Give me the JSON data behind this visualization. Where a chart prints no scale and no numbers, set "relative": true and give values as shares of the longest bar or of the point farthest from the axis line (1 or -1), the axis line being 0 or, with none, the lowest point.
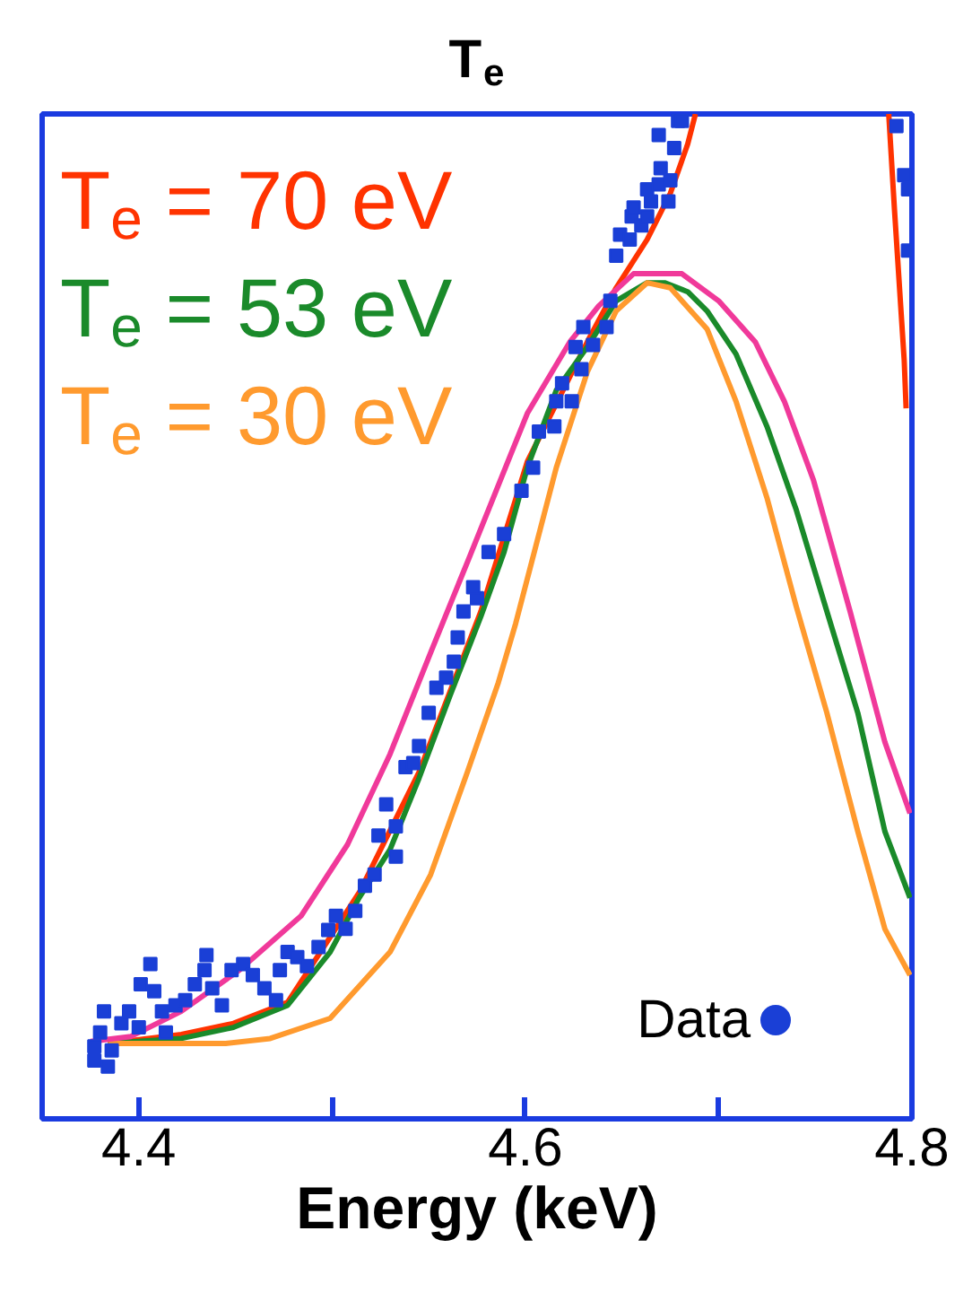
{
  "chart_data": {
    "type": "line",
    "title": "T$_{e}$",
    "xlabel": "Energy (keV)",
    "relative": true,
    "xlim": [
      4.35,
      4.8
    ],
    "xticks": [
      4.4,
      {
        "value": 4.5,
        "label": null
      },
      4.6,
      {
        "value": 4.7,
        "label": null
      },
      4.8
    ],
    "legend": "bottom right",
    "grid": false,
    "line_style": "solid",
    "series": [
      {
        "name": "T$_{e}$ = 70 eV",
        "color": "#ff3300",
        "x": [
          4.384,
          4.422,
          4.449,
          4.477,
          4.514,
          4.545,
          4.577,
          4.601,
          4.632,
          4.647,
          4.663,
          4.675,
          4.684,
          4.688,
          4.74,
          4.788,
          4.791,
          4.796,
          4.797
        ],
        "values": [
          0.075,
          0.084,
          0.095,
          0.116,
          0.225,
          0.345,
          0.505,
          0.654,
          0.773,
          0.827,
          0.875,
          0.921,
          0.97,
          1.0,
          null,
          1.0,
          0.904,
          0.755,
          0.707
        ]
      },
      {
        "name": "T$_{e}$ = 53 eV",
        "color": "#1a8a2a",
        "x": [
          4.384,
          4.422,
          4.449,
          4.477,
          4.499,
          4.514,
          4.53,
          4.545,
          4.561,
          4.577,
          4.589,
          4.601,
          4.616,
          4.632,
          4.647,
          4.663,
          4.672,
          4.684,
          4.694,
          4.709,
          4.725,
          4.74,
          4.756,
          4.772,
          4.786,
          4.799
        ],
        "values": [
          0.075,
          0.08,
          0.091,
          0.113,
          0.166,
          0.22,
          0.268,
          0.339,
          0.421,
          0.5,
          0.564,
          0.648,
          0.725,
          0.768,
          0.814,
          0.832,
          0.832,
          0.823,
          0.804,
          0.761,
          0.689,
          0.607,
          0.505,
          0.404,
          0.286,
          0.22
        ]
      },
      {
        "name": "T$_{e}$ = 30 eV",
        "color": "#ff9a2e",
        "x": [
          4.384,
          4.445,
          4.468,
          4.499,
          4.53,
          4.551,
          4.57,
          4.586,
          4.595,
          4.616,
          4.632,
          4.647,
          4.663,
          4.675,
          4.694,
          4.709,
          4.725,
          4.74,
          4.756,
          4.772,
          4.786,
          4.799
        ],
        "values": [
          0.075,
          0.075,
          0.08,
          0.1,
          0.166,
          0.243,
          0.345,
          0.434,
          0.493,
          0.648,
          0.743,
          0.804,
          0.832,
          0.827,
          0.786,
          0.714,
          0.618,
          0.511,
          0.404,
          0.286,
          0.189,
          0.143
        ]
      },
      {
        "color": "#f0399a",
        "x": [
          4.375,
          4.396,
          4.422,
          4.452,
          4.484,
          4.508,
          4.53,
          4.551,
          4.57,
          4.601,
          4.623,
          4.638,
          4.656,
          4.681,
          4.7,
          4.719,
          4.734,
          4.749,
          4.768,
          4.786,
          4.799
        ],
        "values": [
          0.077,
          0.082,
          0.107,
          0.148,
          0.202,
          0.273,
          0.363,
          0.464,
          0.554,
          0.702,
          0.773,
          0.809,
          0.841,
          0.841,
          0.814,
          0.773,
          0.714,
          0.636,
          0.505,
          0.375,
          0.304
        ]
      },
      {
        "name": "Data",
        "type": "scatter",
        "marker": "square",
        "color": "#1a3fd6",
        "x": [
          4.377,
          4.377,
          4.384,
          4.382,
          4.38,
          4.386,
          4.391,
          4.395,
          4.4,
          4.401,
          4.406,
          4.408,
          4.412,
          4.414,
          4.419,
          4.424,
          4.429,
          4.434,
          4.435,
          4.438,
          4.443,
          4.448,
          4.454,
          4.459,
          4.465,
          4.471,
          4.473,
          4.477,
          4.482,
          4.487,
          4.493,
          4.498,
          4.502,
          4.507,
          4.512,
          4.517,
          4.522,
          4.524,
          4.528,
          4.533,
          4.533,
          4.538,
          4.542,
          4.545,
          4.55,
          4.554,
          4.559,
          4.563,
          4.565,
          4.568,
          4.575,
          4.573,
          4.581,
          4.589,
          4.598,
          4.604,
          4.607,
          4.615,
          4.616,
          4.619,
          4.624,
          4.626,
          4.629,
          4.63,
          4.635,
          4.642,
          4.644,
          4.647,
          4.649,
          4.654,
          4.655,
          4.656,
          4.66,
          4.663,
          4.665,
          4.663,
          4.669,
          4.675,
          4.674,
          4.67,
          4.677,
          4.669,
          4.679,
          4.681,
          4.792,
          4.796,
          4.798,
          4.798
        ],
        "values": [
          0.072,
          0.058,
          0.052,
          0.107,
          0.086,
          0.068,
          0.095,
          0.107,
          0.091,
          0.134,
          0.154,
          0.127,
          0.107,
          0.086,
          0.113,
          0.118,
          0.134,
          0.148,
          0.163,
          0.13,
          0.113,
          0.148,
          0.154,
          0.143,
          0.13,
          0.118,
          0.148,
          0.166,
          0.161,
          0.152,
          0.171,
          0.188,
          0.202,
          0.189,
          0.207,
          0.232,
          0.243,
          0.282,
          0.313,
          0.291,
          0.261,
          0.35,
          0.354,
          0.371,
          0.404,
          0.429,
          0.439,
          0.455,
          0.479,
          0.505,
          0.518,
          0.529,
          0.564,
          0.582,
          0.625,
          0.648,
          0.684,
          0.689,
          0.714,
          0.732,
          0.714,
          0.768,
          0.746,
          0.788,
          0.77,
          0.788,
          0.814,
          0.859,
          0.88,
          0.875,
          0.898,
          0.907,
          0.889,
          0.898,
          0.913,
          0.925,
          0.93,
          0.934,
          0.913,
          0.946,
          0.966,
          0.979,
          0.993,
          0.993,
          0.988,
          0.939,
          0.925,
          0.864
        ]
      }
    ]
  }
}
